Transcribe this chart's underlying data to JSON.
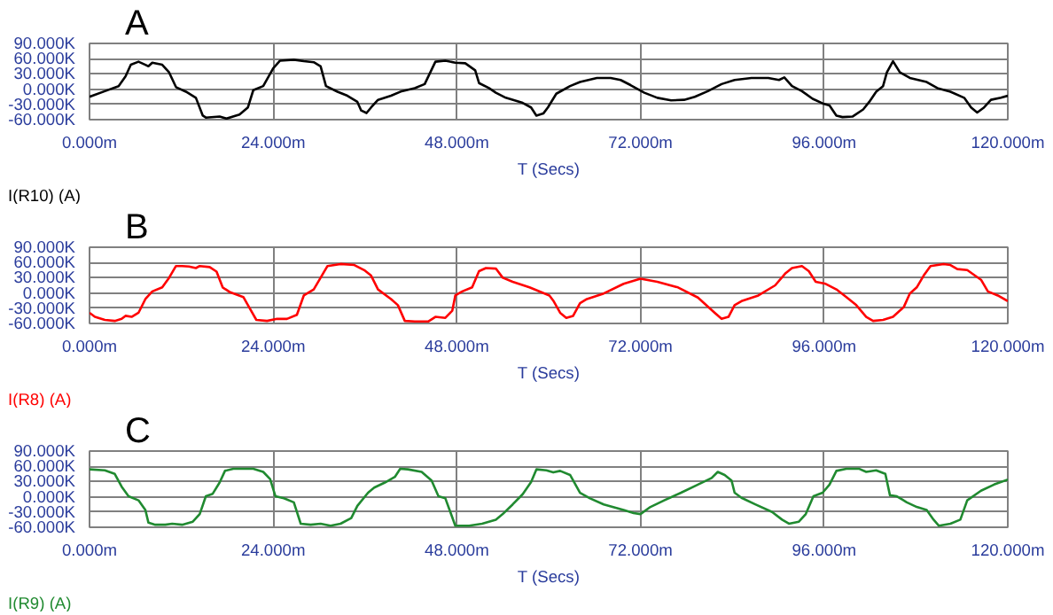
{
  "chart_data": [
    {
      "type": "line",
      "xlabel": "T (Secs)",
      "ylabel": "I(R10) (A)",
      "annotations": [
        "A"
      ],
      "grid": true,
      "x": [
        0,
        2,
        3.8,
        4.7,
        5.4,
        6.4,
        7.3,
        7.7,
        8.2,
        9.5,
        10.4,
        11.3,
        12.6,
        13.9,
        14.8,
        15.2,
        17,
        17.9,
        19.6,
        20.7,
        21.4,
        22.7,
        24,
        24.9,
        26.7,
        28,
        29.3,
        30.2,
        30.9,
        32.4,
        33.7,
        35,
        35.5,
        36.2,
        36.8,
        37.7,
        39.4,
        40.8,
        42.5,
        43.8,
        45.2,
        46.5,
        47.8,
        49.1,
        50.4,
        50.9,
        52.2,
        53.1,
        54.4,
        56.6,
        57.7,
        58.4,
        59.3,
        59.9,
        61,
        62.8,
        64.1,
        66.3,
        68.1,
        69.4,
        70.7,
        72.5,
        74.2,
        76,
        77.7,
        79.1,
        80.8,
        82.6,
        84.3,
        86.5,
        88.7,
        90.1,
        90.8,
        91.8,
        93.1,
        94.5,
        95.8,
        96.7,
        97.6,
        98.4,
        99.7,
        101.1,
        101.9,
        102.8,
        103.7,
        104.2,
        105,
        105.9,
        107.2,
        109.4,
        110.8,
        112.5,
        114.3,
        115.2,
        116,
        116.9,
        117.8,
        119.1,
        120
      ],
      "series": [
        {
          "color": "#000000",
          "values": [
            -15000,
            -4000,
            6000,
            25000,
            48000,
            54000,
            48000,
            45000,
            52000,
            48000,
            33000,
            4000,
            -5000,
            -17000,
            -52000,
            -56000,
            -54000,
            -58000,
            -50000,
            -36000,
            -2000,
            6000,
            41000,
            56000,
            58000,
            55000,
            53000,
            45000,
            6000,
            -5000,
            -13000,
            -25000,
            -42000,
            -47000,
            -36000,
            -21000,
            -13000,
            -4000,
            2000,
            10000,
            54000,
            56000,
            52000,
            51000,
            37000,
            12000,
            2000,
            -7000,
            -17000,
            -27000,
            -36000,
            -52000,
            -48000,
            -36000,
            -9000,
            6000,
            14000,
            22000,
            22000,
            18000,
            8000,
            -7000,
            -17000,
            -22000,
            -21000,
            -15000,
            -4000,
            10000,
            18000,
            22000,
            22000,
            18000,
            23000,
            6000,
            -4000,
            -19000,
            -28000,
            -32000,
            -52000,
            -55000,
            -54000,
            -40000,
            -25000,
            -5000,
            6000,
            33000,
            55000,
            33000,
            22000,
            14000,
            2000,
            -5000,
            -17000,
            -36000,
            -46000,
            -36000,
            -21000,
            -17000,
            -13000
          ]
        }
      ],
      "xlim": [
        0,
        120
      ],
      "ylim": [
        -60000,
        90000
      ],
      "xticks": [
        {
          "value": 0,
          "label": "0.000m"
        },
        {
          "value": 24,
          "label": "24.000m"
        },
        {
          "value": 48,
          "label": "48.000m"
        },
        {
          "value": 72,
          "label": "72.000m"
        },
        {
          "value": 96,
          "label": "96.000m"
        },
        {
          "value": 120,
          "label": "120.000m"
        }
      ],
      "yticks": [
        {
          "value": -60000,
          "label": "-60.000K"
        },
        {
          "value": -30000,
          "label": "-30.000K"
        },
        {
          "value": 0,
          "label": "0.000K"
        },
        {
          "value": 30000,
          "label": "30.000K"
        },
        {
          "value": 60000,
          "label": "60.000K"
        },
        {
          "value": 90000,
          "label": "90.000K"
        }
      ]
    },
    {
      "type": "line",
      "xlabel": "T (Secs)",
      "ylabel": "I(R8) (A)",
      "annotations": [
        "B"
      ],
      "grid": true,
      "x": [
        0,
        0.7,
        2,
        3.3,
        4.2,
        4.7,
        5.5,
        6.4,
        7.3,
        8.2,
        9.5,
        10.4,
        11.3,
        12.1,
        13,
        13.9,
        14.4,
        15.7,
        16.6,
        17.4,
        18.3,
        20.1,
        21,
        21.8,
        23.2,
        24.5,
        25.8,
        27.1,
        28,
        29.3,
        30.2,
        31.1,
        32.8,
        34.6,
        35.9,
        36.8,
        37.7,
        39.4,
        40.3,
        41.2,
        42.5,
        44.3,
        45.2,
        46.5,
        47.4,
        47.8,
        48.7,
        50,
        50.9,
        51.8,
        53.1,
        54,
        55.3,
        57.5,
        60.1,
        60.6,
        61.5,
        62.3,
        63.2,
        64.1,
        65,
        67.2,
        69.8,
        72,
        74.2,
        76.9,
        79.5,
        81.7,
        82.6,
        83.5,
        84.3,
        85.2,
        87.4,
        89.6,
        90.9,
        91.8,
        93.1,
        94,
        94.9,
        96.2,
        97.6,
        98.9,
        100.2,
        101.5,
        102.4,
        103.7,
        105,
        106.4,
        107.2,
        108.1,
        109,
        109.9,
        111.6,
        112.5,
        113.4,
        114.7,
        116.5,
        117.4,
        118.7,
        120
      ],
      "series": [
        {
          "color": "#ff0000",
          "values": [
            -39000,
            -47000,
            -53000,
            -55000,
            -51000,
            -45000,
            -47000,
            -39000,
            -12000,
            3000,
            11000,
            30000,
            53000,
            53000,
            52000,
            49000,
            53000,
            51000,
            42000,
            11000,
            2000,
            -8000,
            -32000,
            -53000,
            -55000,
            -51000,
            -51000,
            -43000,
            -5000,
            7000,
            30000,
            53000,
            57000,
            55000,
            45000,
            34000,
            7000,
            -12000,
            -24000,
            -55000,
            -56000,
            -56000,
            -47000,
            -49000,
            -35000,
            -5000,
            3000,
            11000,
            43000,
            49000,
            48000,
            30000,
            22000,
            11000,
            -5000,
            -15000,
            -39000,
            -49000,
            -45000,
            -20000,
            -12000,
            -1000,
            18000,
            28000,
            22000,
            11000,
            -9000,
            -39000,
            -51000,
            -47000,
            -24000,
            -16000,
            -5000,
            15000,
            38000,
            49000,
            53000,
            43000,
            22000,
            18000,
            7000,
            -8000,
            -24000,
            -47000,
            -55000,
            -53000,
            -47000,
            -28000,
            -1000,
            11000,
            34000,
            53000,
            57000,
            55000,
            47000,
            45000,
            26000,
            3000,
            -5000,
            -16000
          ]
        }
      ],
      "xlim": [
        0,
        120
      ],
      "ylim": [
        -60000,
        90000
      ],
      "xticks": [
        {
          "value": 0,
          "label": "0.000m"
        },
        {
          "value": 24,
          "label": "24.000m"
        },
        {
          "value": 48,
          "label": "48.000m"
        },
        {
          "value": 72,
          "label": "72.000m"
        },
        {
          "value": 96,
          "label": "96.000m"
        },
        {
          "value": 120,
          "label": "120.000m"
        }
      ],
      "yticks": [
        {
          "value": -60000,
          "label": "-60.000K"
        },
        {
          "value": -30000,
          "label": "-30.000K"
        },
        {
          "value": 0,
          "label": "0.000K"
        },
        {
          "value": 30000,
          "label": "30.000K"
        },
        {
          "value": 60000,
          "label": "60.000K"
        },
        {
          "value": 90000,
          "label": "90.000K"
        }
      ]
    },
    {
      "type": "line",
      "xlabel": "T (Secs)",
      "ylabel": "I(R9) (A)",
      "annotations": [
        "C"
      ],
      "grid": true,
      "x": [
        0,
        2,
        3.3,
        4.2,
        5.1,
        6.4,
        7.3,
        7.7,
        8.6,
        9.9,
        10.8,
        12.1,
        13.5,
        14.4,
        15.2,
        16.1,
        17,
        17.7,
        18.8,
        21.4,
        22.7,
        23.6,
        24.3,
        25.4,
        26.7,
        27.6,
        28.9,
        30.2,
        31.5,
        32.8,
        34.2,
        35,
        36.4,
        37.2,
        38.6,
        39.9,
        40.6,
        41.6,
        43.4,
        44.7,
        45.6,
        46.5,
        47.8,
        49.6,
        51.3,
        53.1,
        54,
        55.3,
        56.6,
        57.7,
        58.4,
        59.7,
        60.6,
        61.5,
        62.8,
        64.1,
        65.4,
        67.2,
        69.8,
        71.1,
        72,
        73.3,
        75.1,
        77.3,
        79.5,
        81.3,
        82.1,
        83,
        83.9,
        84.3,
        85.2,
        87,
        89.2,
        90.5,
        91.4,
        92.7,
        93.6,
        94.6,
        95.8,
        96.7,
        97.6,
        98.9,
        100.6,
        101.5,
        102.8,
        104,
        104.6,
        105.5,
        106.8,
        108.1,
        109.4,
        110.3,
        111,
        112.5,
        113.8,
        114.7,
        116.5,
        118.2,
        120
      ],
      "series": [
        {
          "color": "#208a30",
          "values": [
            54000,
            52000,
            45000,
            20000,
            1000,
            -7000,
            -26000,
            -51000,
            -55000,
            -55000,
            -53000,
            -55000,
            -49000,
            -34000,
            1000,
            6000,
            28000,
            51000,
            55000,
            55000,
            49000,
            35000,
            1000,
            -3000,
            -11000,
            -53000,
            -55000,
            -53000,
            -57000,
            -53000,
            -42000,
            -18000,
            8000,
            18000,
            28000,
            39000,
            55000,
            54000,
            49000,
            32000,
            1000,
            -3000,
            -57000,
            -57000,
            -53000,
            -45000,
            -34000,
            -15000,
            5000,
            29000,
            54000,
            52000,
            48000,
            51000,
            43000,
            8000,
            -3000,
            -15000,
            -26000,
            -32000,
            -34000,
            -20000,
            -7000,
            8000,
            24000,
            37000,
            49000,
            43000,
            32000,
            8000,
            -2000,
            -15000,
            -30000,
            -45000,
            -53000,
            -49000,
            -34000,
            1000,
            8000,
            24000,
            51000,
            55000,
            55000,
            49000,
            52000,
            45000,
            3000,
            1000,
            -11000,
            -20000,
            -26000,
            -45000,
            -57000,
            -53000,
            -45000,
            -7000,
            12000,
            24000,
            34000
          ]
        }
      ],
      "xlim": [
        0,
        120
      ],
      "ylim": [
        -60000,
        90000
      ],
      "xticks": [
        {
          "value": 0,
          "label": "0.000m"
        },
        {
          "value": 24,
          "label": "24.000m"
        },
        {
          "value": 48,
          "label": "48.000m"
        },
        {
          "value": 72,
          "label": "72.000m"
        },
        {
          "value": 96,
          "label": "96.000m"
        },
        {
          "value": 120,
          "label": "120.000m"
        }
      ],
      "yticks": [
        {
          "value": -60000,
          "label": "-60.000K"
        },
        {
          "value": -30000,
          "label": "-30.000K"
        },
        {
          "value": 0,
          "label": "0.000K"
        },
        {
          "value": 30000,
          "label": "30.000K"
        },
        {
          "value": 60000,
          "label": "60.000K"
        },
        {
          "value": 90000,
          "label": "90.000K"
        }
      ]
    }
  ]
}
